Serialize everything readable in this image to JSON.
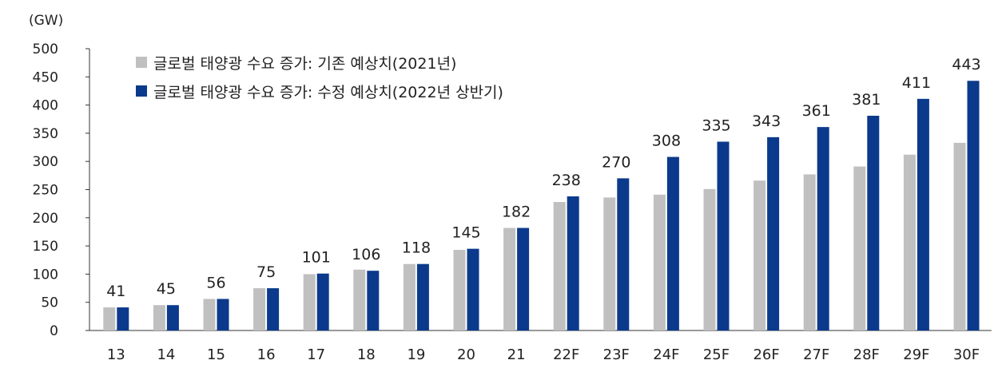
{
  "chart_data": {
    "type": "bar",
    "unit_label": "(GW)",
    "categories": [
      "13",
      "14",
      "15",
      "16",
      "17",
      "18",
      "19",
      "20",
      "21",
      "22F",
      "23F",
      "24F",
      "25F",
      "26F",
      "27F",
      "28F",
      "29F",
      "30F"
    ],
    "series": [
      {
        "name": "글로벌 태양광 수요 증가: 기존 예상치(2021년)",
        "color": "#c0c0c0",
        "values": [
          41,
          45,
          56,
          75,
          100,
          108,
          118,
          143,
          182,
          228,
          236,
          241,
          251,
          266,
          277,
          291,
          312,
          333
        ]
      },
      {
        "name": "글로벌 태양광 수요 증가: 수정 예상치(2022년 상반기)",
        "color": "#0b3a8c",
        "values": [
          41,
          45,
          56,
          75,
          101,
          106,
          118,
          145,
          182,
          238,
          270,
          308,
          335,
          343,
          361,
          381,
          411,
          443
        ]
      }
    ],
    "data_labels": [
      "41",
      "45",
      "56",
      "75",
      "101",
      "106",
      "118",
      "145",
      "182",
      "238",
      "270",
      "308",
      "335",
      "343",
      "361",
      "381",
      "411",
      "443"
    ],
    "yticks": [
      "0",
      "50",
      "100",
      "150",
      "200",
      "250",
      "300",
      "350",
      "400",
      "450",
      "500"
    ],
    "ylim": [
      0,
      500
    ],
    "grid": false,
    "legend_position": "top-left"
  }
}
